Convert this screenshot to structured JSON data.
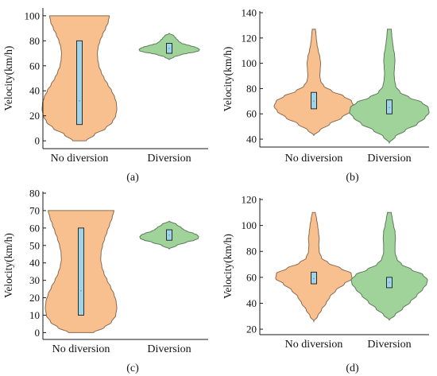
{
  "colors": {
    "no_diversion_fill": "#f9c08f",
    "no_diversion_edge": "#8a6a50",
    "diversion_fill": "#9fd39a",
    "diversion_edge": "#5d7a5a",
    "box_fill": "#9dd4ea",
    "box_edge": "#1a1a1a",
    "axis": "#1a1a1a"
  },
  "chart_data": [
    {
      "panel": "(a)",
      "type": "violin",
      "ylabel": "Velocity(km/h)",
      "ylim": [
        -5,
        105
      ],
      "yticks": [
        0,
        20,
        40,
        60,
        80,
        100
      ],
      "categories": [
        "No diversion",
        "Diversion"
      ],
      "series": [
        {
          "name": "No diversion",
          "min": 0,
          "max": 100,
          "q1": 13,
          "median": 32,
          "q3": 80,
          "density": [
            [
              0,
              0.18
            ],
            [
              5,
              0.4
            ],
            [
              10,
              0.7
            ],
            [
              15,
              0.88
            ],
            [
              20,
              0.97
            ],
            [
              25,
              1.0
            ],
            [
              30,
              0.99
            ],
            [
              35,
              0.94
            ],
            [
              40,
              0.86
            ],
            [
              45,
              0.76
            ],
            [
              50,
              0.66
            ],
            [
              55,
              0.58
            ],
            [
              60,
              0.52
            ],
            [
              65,
              0.49
            ],
            [
              70,
              0.48
            ],
            [
              75,
              0.5
            ],
            [
              80,
              0.55
            ],
            [
              85,
              0.62
            ],
            [
              90,
              0.7
            ],
            [
              95,
              0.77
            ],
            [
              100,
              0.8
            ]
          ]
        },
        {
          "name": "Diversion",
          "min": 65,
          "max": 86,
          "q1": 70,
          "median": 74,
          "q3": 78,
          "density": [
            [
              65,
              0.0
            ],
            [
              67,
              0.15
            ],
            [
              69,
              0.4
            ],
            [
              70,
              0.6
            ],
            [
              71,
              0.85
            ],
            [
              72,
              0.98
            ],
            [
              73,
              1.0
            ],
            [
              74,
              0.95
            ],
            [
              75,
              0.85
            ],
            [
              76,
              0.7
            ],
            [
              77,
              0.55
            ],
            [
              78,
              0.4
            ],
            [
              80,
              0.3
            ],
            [
              82,
              0.22
            ],
            [
              84,
              0.15
            ],
            [
              86,
              0.0
            ]
          ]
        }
      ]
    },
    {
      "panel": "(b)",
      "type": "violin",
      "ylabel": "Velocity(km/h)",
      "ylim": [
        35,
        140
      ],
      "yticks": [
        40,
        60,
        80,
        100,
        120,
        140
      ],
      "categories": [
        "No diversion",
        "Diversion"
      ],
      "series": [
        {
          "name": "No diversion",
          "min": 43,
          "max": 127,
          "q1": 64,
          "median": 70,
          "q3": 77,
          "density": [
            [
              43,
              0.0
            ],
            [
              47,
              0.15
            ],
            [
              52,
              0.4
            ],
            [
              57,
              0.7
            ],
            [
              62,
              0.92
            ],
            [
              66,
              1.0
            ],
            [
              70,
              0.95
            ],
            [
              74,
              0.75
            ],
            [
              78,
              0.45
            ],
            [
              82,
              0.25
            ],
            [
              86,
              0.17
            ],
            [
              90,
              0.15
            ],
            [
              95,
              0.16
            ],
            [
              100,
              0.17
            ],
            [
              105,
              0.15
            ],
            [
              110,
              0.11
            ],
            [
              115,
              0.08
            ],
            [
              120,
              0.06
            ],
            [
              124,
              0.05
            ],
            [
              127,
              0.04
            ]
          ]
        },
        {
          "name": "Diversion",
          "min": 37,
          "max": 127,
          "q1": 60,
          "median": 65,
          "q3": 71,
          "density": [
            [
              37,
              0.0
            ],
            [
              42,
              0.15
            ],
            [
              47,
              0.4
            ],
            [
              52,
              0.7
            ],
            [
              57,
              0.9
            ],
            [
              61,
              1.0
            ],
            [
              65,
              0.98
            ],
            [
              69,
              0.82
            ],
            [
              73,
              0.5
            ],
            [
              77,
              0.27
            ],
            [
              82,
              0.16
            ],
            [
              87,
              0.13
            ],
            [
              92,
              0.12
            ],
            [
              97,
              0.13
            ],
            [
              102,
              0.14
            ],
            [
              107,
              0.13
            ],
            [
              112,
              0.1
            ],
            [
              117,
              0.08
            ],
            [
              122,
              0.06
            ],
            [
              127,
              0.05
            ]
          ]
        }
      ]
    },
    {
      "panel": "(c)",
      "type": "violin",
      "ylabel": "Velocity(km/h)",
      "ylim": [
        -3,
        80
      ],
      "yticks": [
        0,
        10,
        20,
        30,
        40,
        50,
        60,
        70,
        80
      ],
      "categories": [
        "No diversion",
        "Diversion"
      ],
      "series": [
        {
          "name": "No diversion",
          "min": 0,
          "max": 70,
          "q1": 10,
          "median": 24,
          "q3": 60,
          "density": [
            [
              0,
              0.35
            ],
            [
              3,
              0.65
            ],
            [
              6,
              0.85
            ],
            [
              10,
              0.97
            ],
            [
              14,
              1.0
            ],
            [
              18,
              0.98
            ],
            [
              22,
              0.92
            ],
            [
              26,
              0.83
            ],
            [
              30,
              0.73
            ],
            [
              34,
              0.64
            ],
            [
              38,
              0.58
            ],
            [
              42,
              0.55
            ],
            [
              46,
              0.56
            ],
            [
              50,
              0.6
            ],
            [
              54,
              0.66
            ],
            [
              58,
              0.73
            ],
            [
              62,
              0.8
            ],
            [
              66,
              0.87
            ],
            [
              70,
              0.92
            ]
          ]
        },
        {
          "name": "Diversion",
          "min": 48,
          "max": 64,
          "q1": 53,
          "median": 56,
          "q3": 59,
          "density": [
            [
              48,
              0.0
            ],
            [
              50,
              0.25
            ],
            [
              52,
              0.6
            ],
            [
              53,
              0.85
            ],
            [
              54,
              0.98
            ],
            [
              55,
              1.0
            ],
            [
              56,
              0.95
            ],
            [
              57,
              0.82
            ],
            [
              58,
              0.62
            ],
            [
              59,
              0.5
            ],
            [
              60,
              0.42
            ],
            [
              62,
              0.25
            ],
            [
              64,
              0.0
            ]
          ]
        }
      ]
    },
    {
      "panel": "(d)",
      "type": "violin",
      "ylabel": "Velocity(km/h)",
      "ylim": [
        17,
        120
      ],
      "yticks": [
        20,
        40,
        60,
        80,
        100,
        120
      ],
      "categories": [
        "No diversion",
        "Diversion"
      ],
      "series": [
        {
          "name": "No diversion",
          "min": 26,
          "max": 110,
          "q1": 55,
          "median": 59,
          "q3": 64,
          "density": [
            [
              26,
              0.0
            ],
            [
              30,
              0.1
            ],
            [
              35,
              0.2
            ],
            [
              40,
              0.32
            ],
            [
              45,
              0.42
            ],
            [
              50,
              0.58
            ],
            [
              55,
              0.8
            ],
            [
              59,
              1.0
            ],
            [
              63,
              0.98
            ],
            [
              67,
              0.7
            ],
            [
              71,
              0.38
            ],
            [
              75,
              0.2
            ],
            [
              80,
              0.14
            ],
            [
              85,
              0.13
            ],
            [
              90,
              0.14
            ],
            [
              95,
              0.12
            ],
            [
              100,
              0.1
            ],
            [
              105,
              0.07
            ],
            [
              110,
              0.04
            ]
          ]
        },
        {
          "name": "Diversion",
          "min": 27,
          "max": 110,
          "q1": 52,
          "median": 56,
          "q3": 60,
          "density": [
            [
              27,
              0.0
            ],
            [
              31,
              0.15
            ],
            [
              36,
              0.35
            ],
            [
              41,
              0.55
            ],
            [
              46,
              0.72
            ],
            [
              51,
              0.88
            ],
            [
              55,
              0.98
            ],
            [
              58,
              1.0
            ],
            [
              62,
              0.88
            ],
            [
              66,
              0.58
            ],
            [
              70,
              0.32
            ],
            [
              74,
              0.2
            ],
            [
              79,
              0.15
            ],
            [
              85,
              0.15
            ],
            [
              90,
              0.16
            ],
            [
              95,
              0.15
            ],
            [
              100,
              0.11
            ],
            [
              105,
              0.08
            ],
            [
              110,
              0.05
            ]
          ]
        }
      ]
    }
  ]
}
